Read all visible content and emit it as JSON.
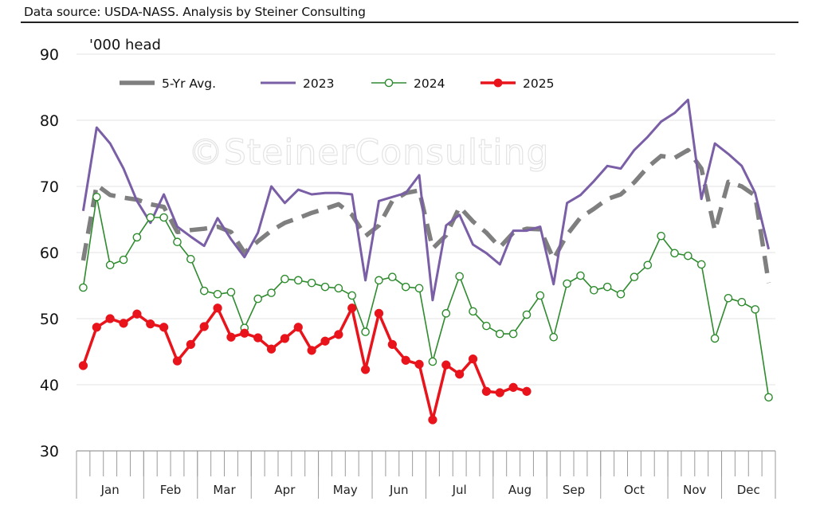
{
  "header": {
    "source_text": "Data source: USDA-NASS.  Analysis by Steiner Consulting"
  },
  "watermark": "©SteinerConsulting",
  "chart_data": {
    "type": "line",
    "title": "",
    "unit_label": "'000 head",
    "xlabel": "",
    "ylabel": "'000 head",
    "ylim": [
      30,
      90
    ],
    "yticks": [
      30,
      40,
      50,
      60,
      70,
      80,
      90
    ],
    "ytick_labels": [
      "30",
      "40",
      "50",
      "60",
      "70",
      "80",
      "90"
    ],
    "grid": true,
    "legend_position": "top-left",
    "x_unit": "week",
    "weeks": 52,
    "months": [
      {
        "label": "Jan",
        "weeks": 5
      },
      {
        "label": "Feb",
        "weeks": 4
      },
      {
        "label": "Mar",
        "weeks": 4
      },
      {
        "label": "Apr",
        "weeks": 5
      },
      {
        "label": "May",
        "weeks": 4
      },
      {
        "label": "Jun",
        "weeks": 4
      },
      {
        "label": "Jul",
        "weeks": 5
      },
      {
        "label": "Aug",
        "weeks": 4
      },
      {
        "label": "Sep",
        "weeks": 4
      },
      {
        "label": "Oct",
        "weeks": 5
      },
      {
        "label": "Nov",
        "weeks": 4
      },
      {
        "label": "Dec",
        "weeks": 4
      }
    ],
    "series": [
      {
        "name": "5-Yr Avg.",
        "color": "#7f7f7f",
        "style": "dashed",
        "marker": "none",
        "values": [
          58.8,
          70.2,
          68.7,
          68.3,
          68.0,
          67.3,
          66.9,
          63.1,
          63.4,
          63.6,
          63.9,
          63.1,
          60.0,
          61.7,
          63.3,
          64.5,
          65.2,
          66.0,
          66.6,
          67.3,
          65.7,
          62.5,
          64.1,
          67.8,
          69.0,
          69.4,
          60.6,
          62.6,
          66.9,
          64.7,
          63.0,
          60.8,
          63.0,
          63.6,
          63.5,
          59.0,
          62.7,
          65.3,
          66.6,
          68.1,
          68.8,
          70.6,
          72.9,
          74.6,
          74.3,
          75.5,
          72.7,
          63.3,
          70.7,
          70.0,
          68.6,
          55.4
        ]
      },
      {
        "name": "2023",
        "color": "#7a5fa6",
        "style": "solid",
        "marker": "none",
        "values": [
          66.3,
          78.9,
          76.5,
          72.7,
          67.8,
          64.5,
          68.8,
          63.9,
          62.4,
          61.0,
          65.2,
          62.0,
          59.3,
          63.0,
          70.0,
          67.5,
          69.5,
          68.8,
          69.0,
          69.0,
          68.8,
          55.8,
          67.8,
          68.4,
          69.0,
          71.7,
          52.8,
          64.1,
          65.7,
          61.2,
          59.9,
          58.2,
          63.3,
          63.3,
          63.9,
          55.2,
          67.5,
          68.7,
          70.8,
          73.1,
          72.7,
          75.5,
          77.5,
          79.8,
          81.1,
          83.1,
          68.1,
          76.5,
          74.9,
          73.1,
          69.0,
          60.5
        ]
      },
      {
        "name": "2024",
        "color": "#2e8b2e",
        "style": "solid",
        "marker": "open-circle",
        "values": [
          54.7,
          68.4,
          58.1,
          58.9,
          62.3,
          65.3,
          65.3,
          61.6,
          59.0,
          54.2,
          53.7,
          54.0,
          48.6,
          53.0,
          53.9,
          56.0,
          55.8,
          55.4,
          54.8,
          54.6,
          53.5,
          48.0,
          55.8,
          56.3,
          54.8,
          54.6,
          43.5,
          50.8,
          56.4,
          51.1,
          48.9,
          47.7,
          47.7,
          50.6,
          53.5,
          47.2,
          55.3,
          56.5,
          54.3,
          54.8,
          53.7,
          56.3,
          58.1,
          62.5,
          59.9,
          59.5,
          58.2,
          47.0,
          53.1,
          52.5,
          51.4,
          38.1
        ]
      },
      {
        "name": "2025",
        "color": "#e8131b",
        "style": "solid",
        "marker": "filled-circle",
        "values": [
          42.9,
          48.7,
          50.0,
          49.3,
          50.7,
          49.2,
          48.7,
          43.6,
          46.1,
          48.8,
          51.6,
          47.2,
          47.8,
          47.1,
          45.4,
          47.0,
          48.7,
          45.2,
          46.6,
          47.6,
          51.6,
          42.3,
          50.8,
          46.1,
          43.7,
          43.1,
          34.7,
          43.0,
          41.6,
          43.9,
          39.0,
          38.8,
          39.6,
          39.0
        ]
      }
    ]
  }
}
